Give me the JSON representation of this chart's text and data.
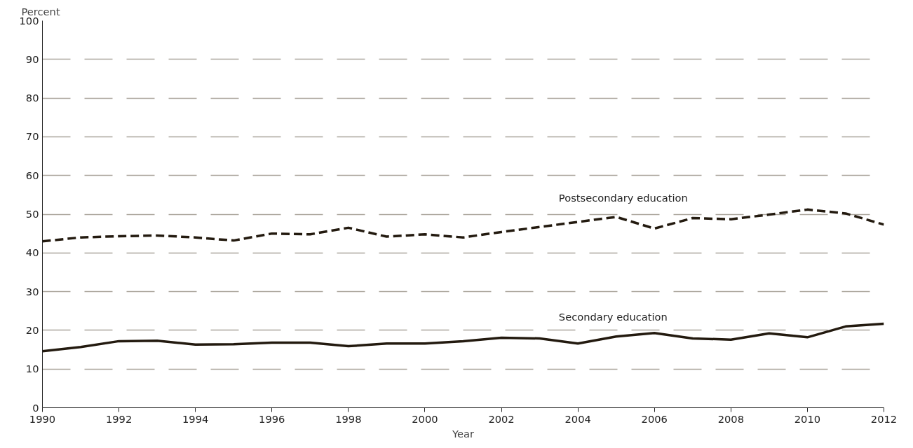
{
  "chart_data": {
    "type": "line",
    "xlabel": "Year",
    "ylabel": "Percent",
    "x": [
      1990,
      1991,
      1992,
      1993,
      1994,
      1995,
      1996,
      1997,
      1998,
      1999,
      2000,
      2001,
      2002,
      2003,
      2004,
      2005,
      2006,
      2007,
      2008,
      2009,
      2010,
      2011,
      2012
    ],
    "series": [
      {
        "name": "Postsecondary education",
        "color": "#231a0f",
        "line_style": "dashed",
        "values": [
          43,
          44,
          44.3,
          44.5,
          44,
          43.2,
          45,
          44.8,
          46.5,
          44.2,
          44.8,
          44,
          45.4,
          46.7,
          48,
          49.3,
          46.3,
          49,
          48.7,
          49.9,
          51.2,
          50.2,
          47.3
        ]
      },
      {
        "name": "Secondary education",
        "color": "#231a0f",
        "line_style": "solid",
        "values": [
          14.6,
          15.7,
          17.2,
          17.3,
          16.3,
          16.4,
          16.8,
          16.8,
          15.9,
          16.6,
          16.6,
          17.2,
          18.1,
          17.9,
          16.6,
          18.4,
          19.3,
          17.9,
          17.6,
          19.2,
          18.2,
          21,
          21.7
        ]
      }
    ],
    "xlim": [
      1990,
      2012
    ],
    "xticks": [
      1990,
      1992,
      1994,
      1996,
      1998,
      2000,
      2002,
      2004,
      2006,
      2008,
      2010,
      2012
    ],
    "ylim": [
      0,
      100
    ],
    "yticks": [
      0,
      10,
      20,
      30,
      40,
      50,
      60,
      70,
      80,
      90,
      100
    ],
    "grid": "y",
    "legend": false,
    "marker": "none"
  }
}
